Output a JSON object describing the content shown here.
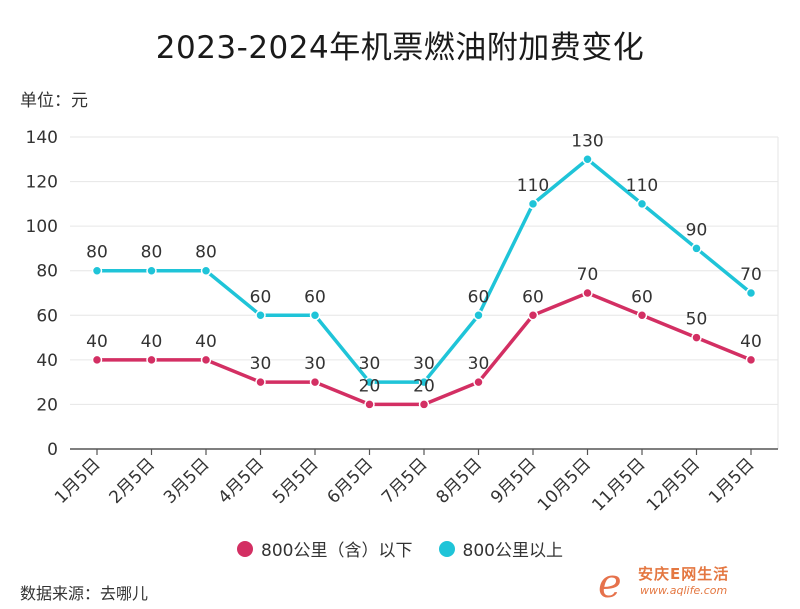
{
  "chart_data": {
    "type": "line",
    "title": "2023-2024年机票燃油附加费变化",
    "unit_label": "单位：元",
    "categories": [
      "1月5日",
      "2月5日",
      "3月5日",
      "4月5日",
      "5月5日",
      "6月5日",
      "7月5日",
      "8月5日",
      "9月5日",
      "10月5日",
      "11月5日",
      "12月5日",
      "1月5日"
    ],
    "series": [
      {
        "name": "800公里（含）以下",
        "color": "#d32f63",
        "values": [
          40,
          40,
          40,
          30,
          30,
          20,
          20,
          30,
          60,
          70,
          60,
          50,
          40
        ]
      },
      {
        "name": "800公里以上",
        "color": "#1fc4d8",
        "values": [
          80,
          80,
          80,
          60,
          60,
          30,
          30,
          60,
          110,
          130,
          110,
          90,
          70
        ]
      }
    ],
    "ylim": [
      0,
      140
    ],
    "yticks": [
      0,
      20,
      40,
      60,
      80,
      100,
      120,
      140
    ],
    "grid": true,
    "legend_position": "bottom",
    "source": "数据来源：去哪儿"
  },
  "watermark": {
    "glyph": "e",
    "name": "安庆E网生活",
    "url": "www.aqlife.com"
  }
}
